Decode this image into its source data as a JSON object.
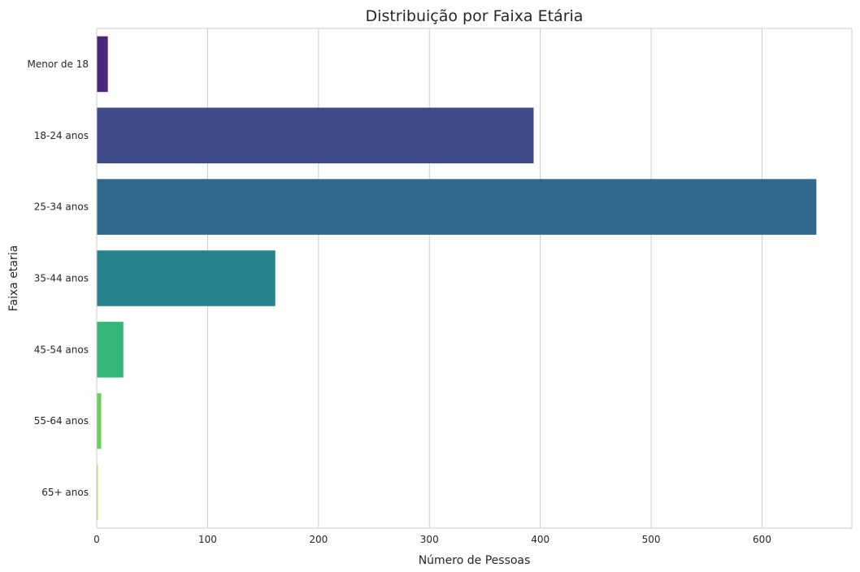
{
  "chart_data": {
    "type": "bar",
    "orientation": "horizontal",
    "title": "Distribuição por Faixa Etária",
    "xlabel": "Número de Pessoas",
    "ylabel": "Faixa etaria",
    "categories": [
      "Menor de 18",
      "18-24 anos",
      "25-34 anos",
      "35-44 anos",
      "45-54 anos",
      "55-64 anos",
      "65+ anos"
    ],
    "values": [
      10,
      394,
      649,
      161,
      24,
      4,
      1
    ],
    "colors": [
      "#482878",
      "#3e4a89",
      "#31688e",
      "#26828e",
      "#35b779",
      "#6ece58",
      "#b5de2b"
    ],
    "xlim": [
      0,
      681
    ],
    "xticks": [
      0,
      100,
      200,
      300,
      400,
      500,
      600
    ],
    "grid": "vertical"
  }
}
